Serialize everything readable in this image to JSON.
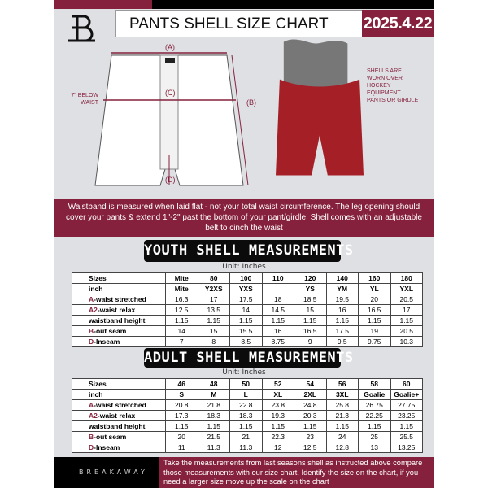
{
  "header": {
    "title": "PANTS SHELL SIZE CHART",
    "date": "2025.4.22",
    "brand_mark": "B"
  },
  "diagram": {
    "label_a": "(A)",
    "label_b": "(B)",
    "label_c": "(C)",
    "label_d": "(D)",
    "below_waist_note": "7\" BELOW WAIST",
    "photo_note": "SHELLS ARE WORN OVER HOCKEY EQUIPMENT PANTS OR GIRDLE"
  },
  "info_band": "Waistband is measured when laid flat - not your total waist circumference. The leg opening should cover your pants & extend 1\"-2\" past the bottom of your pant/girdle. Shell comes with an adjustable belt to cinch the waist",
  "youth": {
    "title": "YOUTH SHELL MEASUREMENTS",
    "unit": "Unit: Inches",
    "rows": [
      {
        "prefix": "",
        "label": "Sizes",
        "values": [
          "Mite",
          "80",
          "100",
          "110",
          "120",
          "140",
          "160",
          "180"
        ]
      },
      {
        "prefix": "",
        "label": "inch",
        "values": [
          "Mite",
          "Y2XS",
          "YXS",
          "",
          "YS",
          "YM",
          "YL",
          "YXL"
        ]
      },
      {
        "prefix": "A",
        "label": "-waist stretched",
        "values": [
          "16.3",
          "17",
          "17.5",
          "18",
          "18.5",
          "19.5",
          "20",
          "20.5"
        ]
      },
      {
        "prefix": "A2",
        "label": "-waist relax",
        "values": [
          "12.5",
          "13.5",
          "14",
          "14.5",
          "15",
          "16",
          "16.5",
          "17"
        ]
      },
      {
        "prefix": "",
        "label": "waistband height",
        "values": [
          "1.15",
          "1.15",
          "1.15",
          "1.15",
          "1.15",
          "1.15",
          "1.15",
          "1.15"
        ]
      },
      {
        "prefix": "B",
        "label": "-out seam",
        "values": [
          "14",
          "15",
          "15.5",
          "16",
          "16.5",
          "17.5",
          "19",
          "20.5"
        ]
      },
      {
        "prefix": "D",
        "label": "-Inseam",
        "values": [
          "7",
          "8",
          "8.5",
          "8.75",
          "9",
          "9.5",
          "9.75",
          "10.3"
        ]
      }
    ]
  },
  "adult": {
    "title": "ADULT SHELL MEASUREMENTS",
    "unit": "Unit: Inches",
    "rows": [
      {
        "prefix": "",
        "label": "Sizes",
        "values": [
          "46",
          "48",
          "50",
          "52",
          "54",
          "56",
          "58",
          "60"
        ]
      },
      {
        "prefix": "",
        "label": "inch",
        "values": [
          "S",
          "M",
          "L",
          "XL",
          "2XL",
          "3XL",
          "Goalie",
          "Goalie+"
        ]
      },
      {
        "prefix": "A",
        "label": "-waist stretched",
        "values": [
          "20.8",
          "21.8",
          "22.8",
          "23.8",
          "24.8",
          "25.8",
          "26.75",
          "27.75"
        ]
      },
      {
        "prefix": "A2",
        "label": "-waist relax",
        "values": [
          "17.3",
          "18.3",
          "18.3",
          "19.3",
          "20.3",
          "21.3",
          "22.25",
          "23.25"
        ]
      },
      {
        "prefix": "",
        "label": "waistband height",
        "values": [
          "1.15",
          "1.15",
          "1.15",
          "1.15",
          "1.15",
          "1.15",
          "1.15",
          "1.15"
        ]
      },
      {
        "prefix": "B",
        "label": "-out seam",
        "values": [
          "20",
          "21.5",
          "21",
          "22.3",
          "23",
          "24",
          "25",
          "25.5"
        ]
      },
      {
        "prefix": "D",
        "label": "-Inseam",
        "values": [
          "11",
          "11.3",
          "11.3",
          "12",
          "12.5",
          "12.8",
          "13",
          "13.25"
        ]
      }
    ]
  },
  "footer": {
    "brand": "BREAKAWAY",
    "text": "Take the measurements from last seasons shell as instructed above compare those measurements  with our size chart. Identify the size on the chart, if you need a larger size move up the scale on the chart"
  },
  "colors": {
    "accent": "#85213c",
    "dark": "#000000",
    "background": "#dfe0e4"
  }
}
